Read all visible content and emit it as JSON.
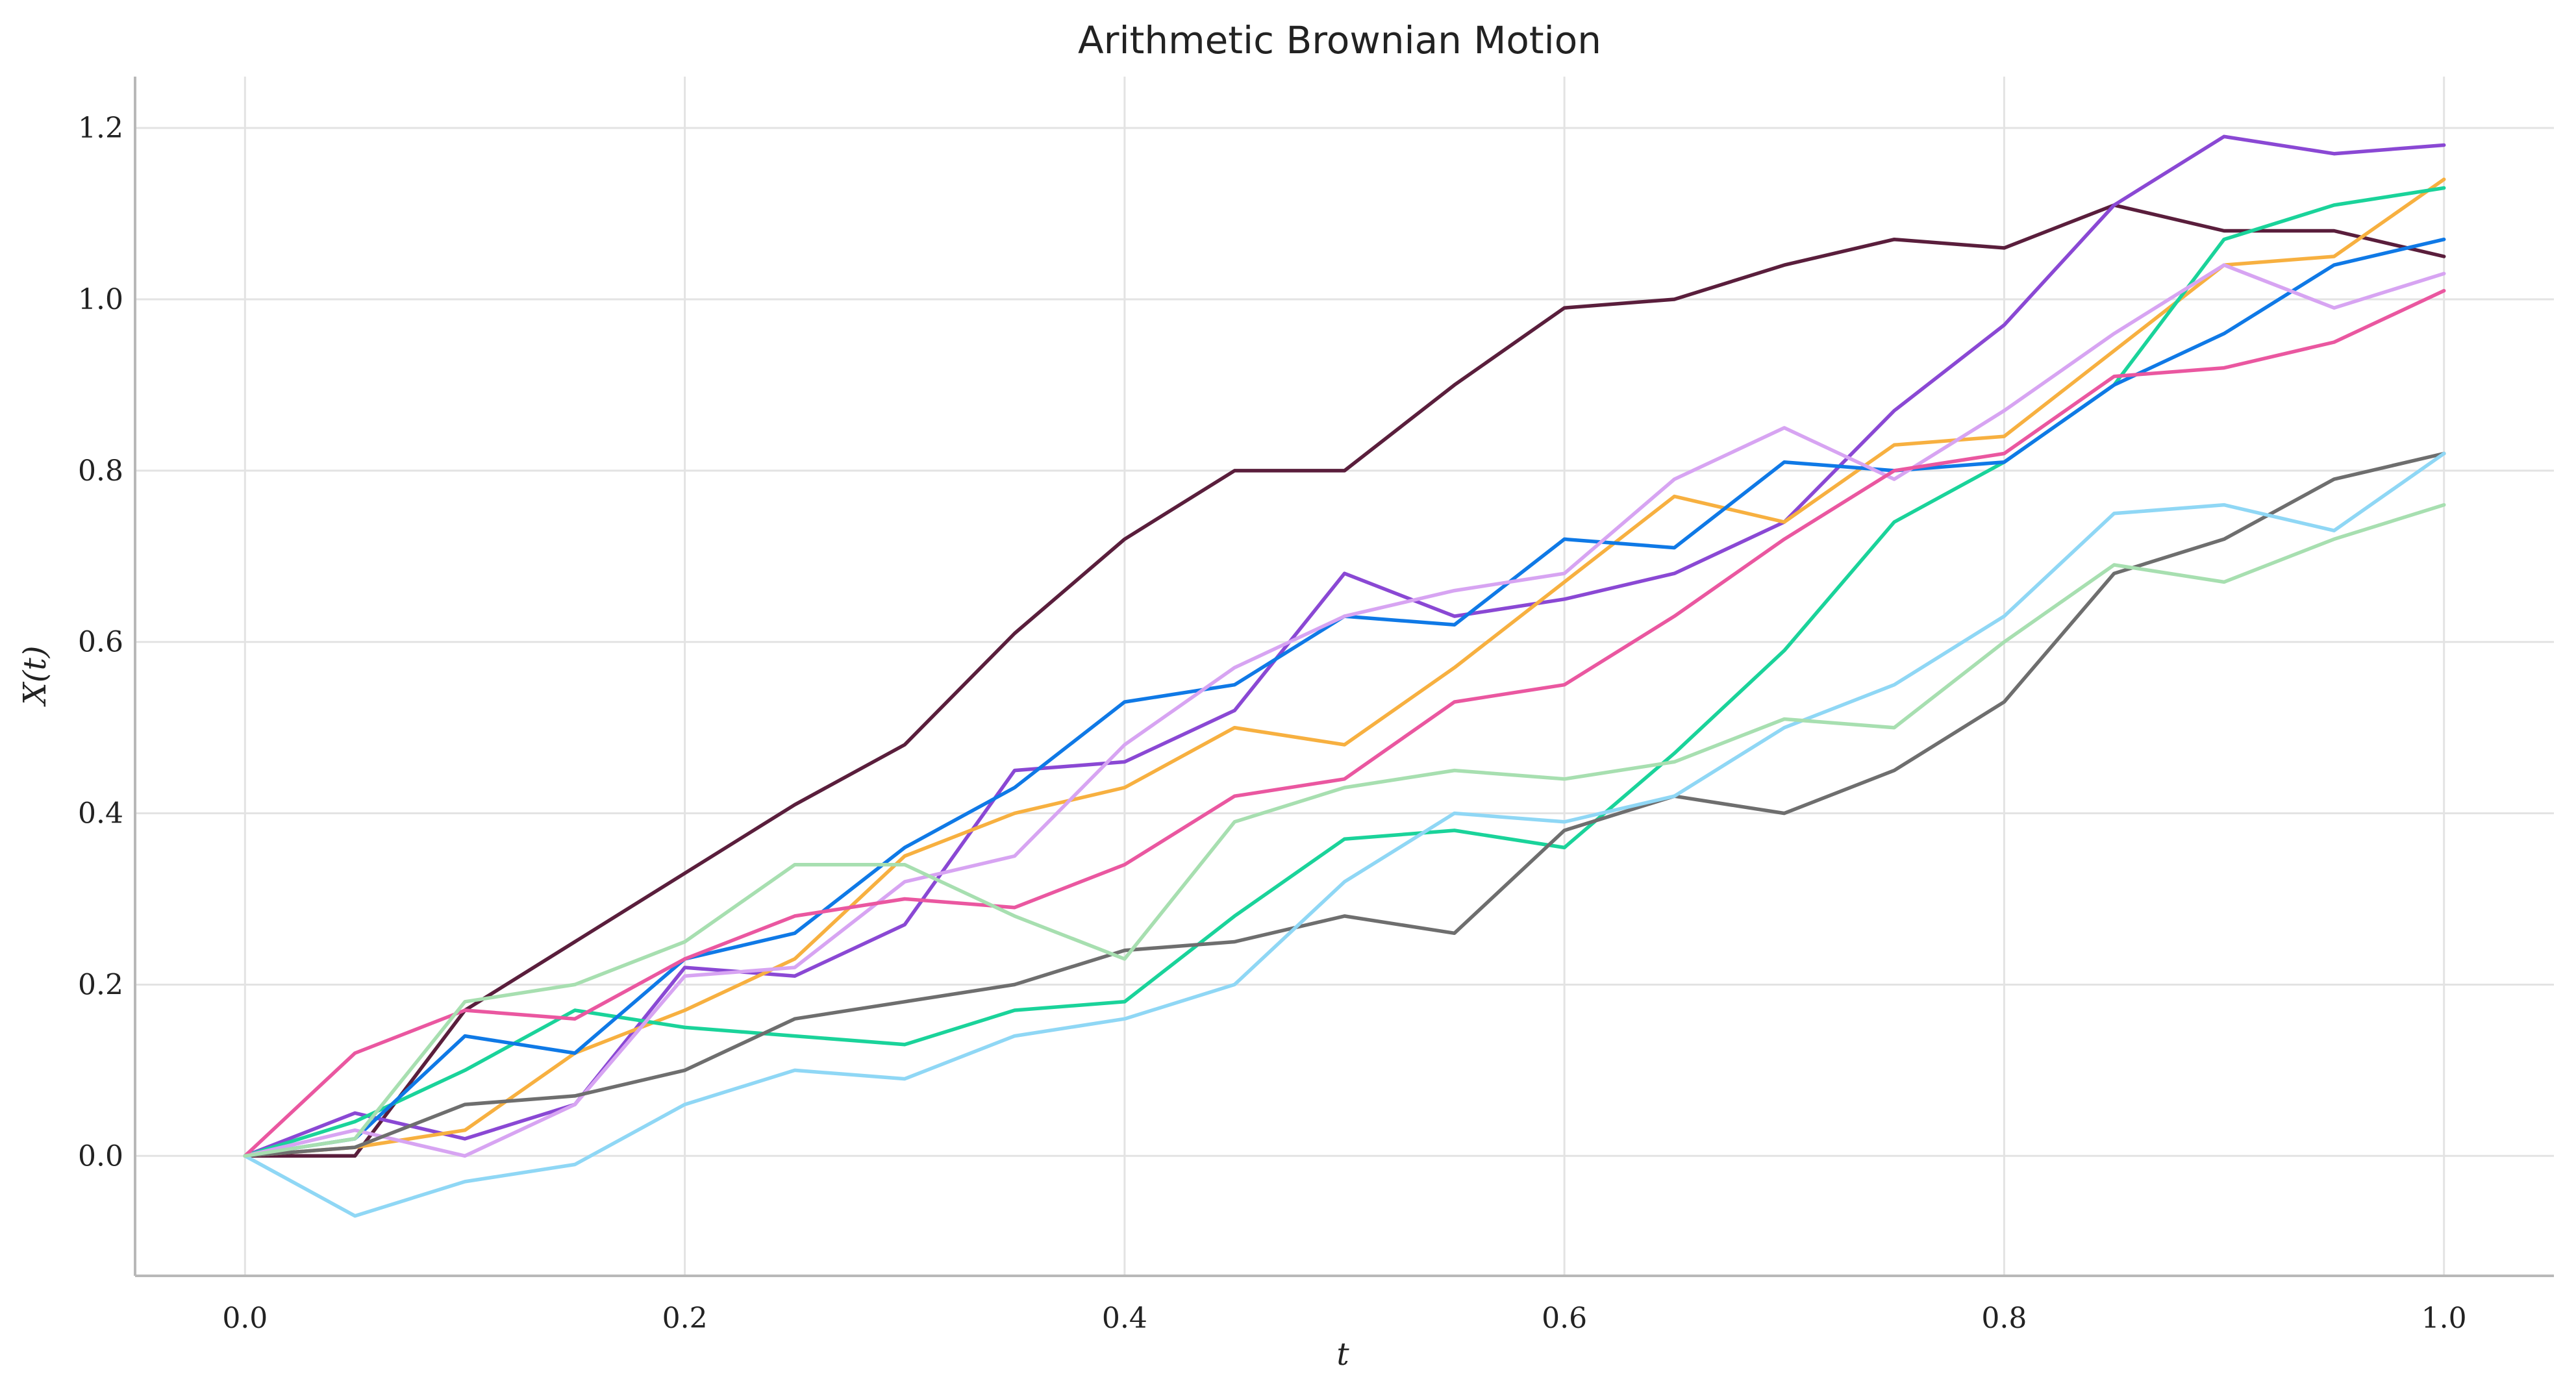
{
  "chart_data": {
    "type": "line",
    "title": "Arithmetic Brownian Motion",
    "xlabel": "t",
    "ylabel": "X(t)",
    "xlim": [
      -0.05,
      1.05
    ],
    "ylim": [
      -0.14,
      1.26
    ],
    "xticks": [
      0.0,
      0.2,
      0.4,
      0.6,
      0.8,
      1.0
    ],
    "xtick_labels": [
      "0.0",
      "0.2",
      "0.4",
      "0.6",
      "0.8",
      "1.0"
    ],
    "yticks": [
      0.0,
      0.2,
      0.4,
      0.6,
      0.8,
      1.0,
      1.2
    ],
    "ytick_labels": [
      "0.0",
      "0.2",
      "0.4",
      "0.6",
      "0.8",
      "1.0",
      "1.2"
    ],
    "grid": true,
    "legend": "none",
    "x": [
      0.0,
      0.05,
      0.1,
      0.15,
      0.2,
      0.25,
      0.3,
      0.35,
      0.4,
      0.45,
      0.5,
      0.55,
      0.6,
      0.65,
      0.7,
      0.75,
      0.8,
      0.85,
      0.9,
      0.95,
      1.0
    ],
    "series": [
      {
        "color": "#5a1e3c",
        "values": [
          0.0,
          0.0,
          0.17,
          0.25,
          0.33,
          0.41,
          0.48,
          0.61,
          0.72,
          0.8,
          0.8,
          0.9,
          0.99,
          1.0,
          1.04,
          1.07,
          1.06,
          1.11,
          1.08,
          1.08,
          1.05
        ]
      },
      {
        "color": "#8a48d4",
        "values": [
          0.0,
          0.05,
          0.02,
          0.06,
          0.22,
          0.21,
          0.27,
          0.45,
          0.46,
          0.52,
          0.68,
          0.63,
          0.65,
          0.68,
          0.74,
          0.87,
          0.97,
          1.11,
          1.19,
          1.17,
          1.18
        ]
      },
      {
        "color": "#f7b040",
        "values": [
          0.0,
          0.01,
          0.03,
          0.12,
          0.17,
          0.23,
          0.35,
          0.4,
          0.43,
          0.5,
          0.48,
          0.57,
          0.67,
          0.77,
          0.74,
          0.83,
          0.84,
          0.94,
          1.04,
          1.05,
          1.14
        ]
      },
      {
        "color": "#1ad39a",
        "values": [
          0.0,
          0.04,
          0.1,
          0.17,
          0.15,
          0.14,
          0.13,
          0.17,
          0.18,
          0.28,
          0.37,
          0.38,
          0.36,
          0.47,
          0.59,
          0.74,
          0.81,
          0.9,
          1.07,
          1.11,
          1.13
        ]
      },
      {
        "color": "#0f79e6",
        "values": [
          0.0,
          0.02,
          0.14,
          0.12,
          0.23,
          0.26,
          0.36,
          0.43,
          0.53,
          0.55,
          0.63,
          0.62,
          0.72,
          0.71,
          0.81,
          0.8,
          0.81,
          0.9,
          0.96,
          1.04,
          1.07
        ]
      },
      {
        "color": "#d7a4f2",
        "values": [
          0.0,
          0.03,
          0.0,
          0.06,
          0.21,
          0.22,
          0.32,
          0.35,
          0.48,
          0.57,
          0.63,
          0.66,
          0.68,
          0.79,
          0.85,
          0.79,
          0.87,
          0.96,
          1.04,
          0.99,
          1.03
        ]
      },
      {
        "color": "#ea57a0",
        "values": [
          0.0,
          0.12,
          0.17,
          0.16,
          0.23,
          0.28,
          0.3,
          0.29,
          0.34,
          0.42,
          0.44,
          0.53,
          0.55,
          0.63,
          0.72,
          0.8,
          0.82,
          0.91,
          0.92,
          0.95,
          1.01
        ]
      },
      {
        "color": "#6e6e6e",
        "values": [
          0.0,
          0.01,
          0.06,
          0.07,
          0.1,
          0.16,
          0.18,
          0.2,
          0.24,
          0.25,
          0.28,
          0.26,
          0.38,
          0.42,
          0.4,
          0.45,
          0.53,
          0.68,
          0.72,
          0.79,
          0.82
        ]
      },
      {
        "color": "#8fd7f5",
        "values": [
          0.0,
          -0.07,
          -0.03,
          -0.01,
          0.06,
          0.1,
          0.09,
          0.14,
          0.16,
          0.2,
          0.32,
          0.4,
          0.39,
          0.42,
          0.5,
          0.55,
          0.63,
          0.75,
          0.76,
          0.73,
          0.82
        ]
      },
      {
        "color": "#a7dfb0",
        "values": [
          0.0,
          0.02,
          0.18,
          0.2,
          0.25,
          0.34,
          0.34,
          0.28,
          0.23,
          0.39,
          0.43,
          0.45,
          0.44,
          0.46,
          0.51,
          0.5,
          0.6,
          0.69,
          0.67,
          0.72,
          0.76
        ]
      }
    ]
  }
}
